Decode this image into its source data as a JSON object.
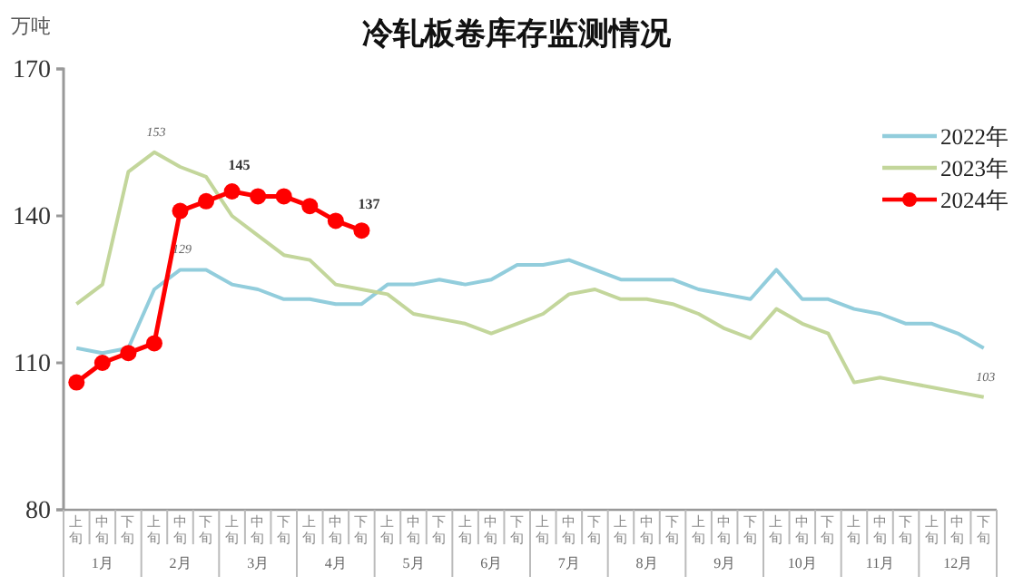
{
  "chart_data": {
    "type": "line",
    "title": "冷轧板卷库存监测情况",
    "ylabel": "万吨",
    "categories": [
      "上旬",
      "中旬",
      "下旬",
      "上旬",
      "中旬",
      "下旬",
      "上旬",
      "中旬",
      "下旬",
      "上旬",
      "中旬",
      "下旬",
      "上旬",
      "中旬",
      "下旬",
      "上旬",
      "中旬",
      "下旬",
      "上旬",
      "中旬",
      "下旬",
      "上旬",
      "中旬",
      "下旬",
      "上旬",
      "中旬",
      "下旬",
      "上旬",
      "中旬",
      "下旬",
      "上旬",
      "中旬",
      "下旬",
      "上旬",
      "中旬",
      "下旬"
    ],
    "annotations": [
      "1月",
      "2月",
      "3月",
      "4月",
      "5月",
      "6月",
      "7月",
      "8月",
      "9月",
      "10月",
      "11月",
      "12月"
    ],
    "ylim": [
      80,
      170
    ],
    "yticks": [
      80,
      110,
      140,
      170
    ],
    "grid": false,
    "legend": "top right",
    "line_style": "solid",
    "series": [
      {
        "name": "2022年",
        "color": "#92cddc",
        "marker": "none",
        "values": [
          113,
          112,
          113,
          125,
          129,
          129,
          126,
          125,
          123,
          123,
          122,
          122,
          126,
          126,
          127,
          126,
          127,
          130,
          130,
          131,
          129,
          127,
          127,
          127,
          125,
          124,
          123,
          129,
          123,
          123,
          121,
          120,
          118,
          118,
          116,
          113
        ],
        "value_labels": [
          null,
          null,
          null,
          null,
          "129",
          null,
          null,
          null,
          null,
          null,
          null,
          null,
          null,
          null,
          null,
          null,
          null,
          null,
          null,
          null,
          null,
          null,
          null,
          null,
          null,
          null,
          null,
          null,
          null,
          null,
          null,
          null,
          null,
          null,
          null,
          null
        ]
      },
      {
        "name": "2023年",
        "color": "#c3d69b",
        "marker": "none",
        "values": [
          122,
          126,
          149,
          153,
          150,
          148,
          140,
          136,
          132,
          131,
          126,
          125,
          124,
          120,
          119,
          118,
          116,
          118,
          120,
          124,
          125,
          123,
          123,
          122,
          120,
          117,
          115,
          121,
          118,
          116,
          106,
          107,
          106,
          105,
          104,
          103
        ],
        "value_labels": [
          null,
          null,
          null,
          "153",
          null,
          null,
          null,
          null,
          null,
          null,
          null,
          null,
          null,
          null,
          null,
          null,
          null,
          null,
          null,
          null,
          null,
          null,
          null,
          null,
          null,
          null,
          null,
          null,
          null,
          null,
          null,
          null,
          null,
          null,
          null,
          "103"
        ]
      },
      {
        "name": "2024年",
        "color": "#ff0000",
        "marker": "circle",
        "values": [
          106,
          110,
          112,
          114,
          141,
          143,
          145,
          144,
          144,
          142,
          139,
          137,
          null,
          null,
          null,
          null,
          null,
          null,
          null,
          null,
          null,
          null,
          null,
          null,
          null,
          null,
          null,
          null,
          null,
          null,
          null,
          null,
          null,
          null,
          null,
          null
        ],
        "value_labels": [
          null,
          null,
          null,
          null,
          null,
          null,
          "145",
          null,
          null,
          null,
          null,
          "137",
          null,
          null,
          null,
          null,
          null,
          null,
          null,
          null,
          null,
          null,
          null,
          null,
          null,
          null,
          null,
          null,
          null,
          null,
          null,
          null,
          null,
          null,
          null,
          null
        ]
      }
    ]
  }
}
